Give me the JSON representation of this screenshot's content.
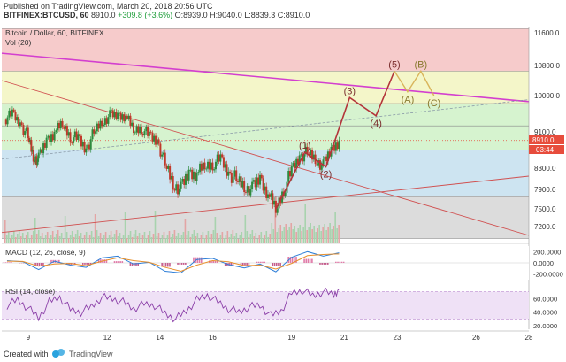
{
  "header": {
    "published_line": "Published on TradingView.com, March 20, 2018 20:56 UTC",
    "symbol": "BITFINEX:BTCUSD, 60",
    "last": "8910.0",
    "change": "+309.8 (+3.6%)",
    "ohlc": "O:8939.0 H:9040.0 L:8839.3 C:8910.0"
  },
  "legend": {
    "title": "Bitcoin / Dollar, 60, BITFINEX",
    "volume": "Vol (20)",
    "macd": "MACD (12, 26, close, 9)",
    "rsi": "RSI (14, close)"
  },
  "price_badge": {
    "value": "8910.0",
    "time": "03:44",
    "color": "#e74c3c"
  },
  "footer": {
    "created": "Created with",
    "brand": "TradingView"
  },
  "colors": {
    "fib_red": "#f6cbcb",
    "fib_yellow": "#f4f6c9",
    "fib_green": "#d6f3cf",
    "fib_blue": "#cde4f1",
    "fib_grey": "#dcdcdc",
    "up": "#2e8b3e",
    "down": "#c0392b",
    "magenta_line": "#d33fcf",
    "wave_path": "#b3343a",
    "wave_future": "#d9b45a"
  },
  "chart_data": [
    {
      "type": "candlestick",
      "title": "Bitcoin / Dollar, 60, BITFINEX",
      "price_ticks": [
        "11600.0",
        "10800.0",
        "10000.0",
        "9100.0",
        "8300.0",
        "7900.0",
        "7500.0",
        "7200.0"
      ],
      "price_range": [
        7000,
        11900
      ],
      "x_ticks": [
        "9",
        "12",
        "14",
        "16",
        "19",
        "21",
        "23",
        "26",
        "28"
      ],
      "x_range": [
        8,
        28
      ],
      "fib_levels": [
        11700,
        10650,
        9800,
        9250,
        8700,
        7750,
        7450,
        7000
      ],
      "close_path": [
        [
          8.1,
          9400
        ],
        [
          8.4,
          9550
        ],
        [
          8.7,
          9300
        ],
        [
          9.0,
          9000
        ],
        [
          9.2,
          8550
        ],
        [
          9.4,
          8500
        ],
        [
          9.7,
          8900
        ],
        [
          10.0,
          9100
        ],
        [
          10.3,
          9300
        ],
        [
          10.6,
          9000
        ],
        [
          10.9,
          8950
        ],
        [
          11.2,
          8700
        ],
        [
          11.5,
          9100
        ],
        [
          11.8,
          9350
        ],
        [
          12.1,
          9500
        ],
        [
          12.4,
          9500
        ],
        [
          12.7,
          9500
        ],
        [
          13.0,
          9150
        ],
        [
          13.3,
          9200
        ],
        [
          13.6,
          9000
        ],
        [
          13.9,
          8900
        ],
        [
          14.2,
          8400
        ],
        [
          14.5,
          8000
        ],
        [
          14.8,
          7900
        ],
        [
          15.1,
          8200
        ],
        [
          15.4,
          8200
        ],
        [
          15.7,
          8350
        ],
        [
          16.0,
          8400
        ],
        [
          16.3,
          8500
        ],
        [
          16.6,
          8200
        ],
        [
          16.9,
          8100
        ],
        [
          17.2,
          7950
        ],
        [
          17.5,
          7900
        ],
        [
          17.8,
          8100
        ],
        [
          18.1,
          7800
        ],
        [
          18.4,
          7500
        ],
        [
          18.7,
          7900
        ],
        [
          19.0,
          8250
        ],
        [
          19.3,
          8550
        ],
        [
          19.6,
          8650
        ],
        [
          19.9,
          8500
        ],
        [
          20.2,
          8350
        ],
        [
          20.5,
          8700
        ],
        [
          20.8,
          8910
        ]
      ],
      "waves": [
        {
          "label": "(1)",
          "x": 19.5,
          "y": 8650
        },
        {
          "label": "(2)",
          "x": 20.3,
          "y": 8330
        },
        {
          "label": "(3)",
          "x": 21.2,
          "y": 9950
        },
        {
          "label": "(4)",
          "x": 22.2,
          "y": 9500
        },
        {
          "label": "(5)",
          "x": 22.9,
          "y": 10650
        },
        {
          "label": "(A)",
          "x": 23.4,
          "y": 10100
        },
        {
          "label": "(B)",
          "x": 23.9,
          "y": 10650
        },
        {
          "label": "(C)",
          "x": 24.4,
          "y": 10000
        }
      ],
      "wave_path": [
        [
          18.4,
          7500
        ],
        [
          19.5,
          8650
        ],
        [
          20.3,
          8330
        ],
        [
          21.2,
          9950
        ],
        [
          22.2,
          9500
        ],
        [
          22.9,
          10650
        ]
      ],
      "wave_future": [
        [
          22.9,
          10650
        ],
        [
          23.4,
          10100
        ],
        [
          23.9,
          10650
        ],
        [
          24.4,
          10000
        ]
      ],
      "trendlines": [
        {
          "name": "upper",
          "from": [
            8.0,
            11100
          ],
          "to": [
            28.0,
            9850
          ],
          "style": "solid"
        },
        {
          "name": "dashed",
          "from": [
            8.0,
            8500
          ],
          "to": [
            28.0,
            9900
          ],
          "style": "dashed"
        },
        {
          "name": "falling",
          "from": [
            8.0,
            10400
          ],
          "to": [
            28.0,
            7050
          ],
          "style": "solid"
        },
        {
          "name": "rising",
          "from": [
            8.0,
            7100
          ],
          "to": [
            28.0,
            8150
          ],
          "style": "solid"
        }
      ]
    },
    {
      "type": "line",
      "title": "MACD (12, 26, close, 9)",
      "y_ticks": [
        "200.0000",
        "0.0000",
        "-200.0000"
      ],
      "y_range": [
        -300,
        300
      ],
      "x": [
        8.2,
        8.8,
        9.4,
        10.0,
        10.6,
        11.2,
        11.8,
        12.4,
        13.0,
        13.6,
        14.2,
        14.8,
        15.4,
        16.0,
        16.6,
        17.2,
        17.8,
        18.4,
        19.0,
        19.6,
        20.2,
        20.8
      ],
      "series": [
        {
          "name": "MACD",
          "values": [
            40,
            20,
            -120,
            30,
            -40,
            -80,
            90,
            120,
            -20,
            10,
            -150,
            -180,
            60,
            80,
            -30,
            -90,
            -20,
            -160,
            100,
            200,
            120,
            180
          ]
        },
        {
          "name": "Signal",
          "values": [
            30,
            25,
            -60,
            -20,
            -10,
            -50,
            30,
            90,
            40,
            10,
            -80,
            -150,
            -40,
            40,
            20,
            -50,
            -40,
            -110,
            -10,
            130,
            150,
            160
          ]
        }
      ]
    },
    {
      "type": "line",
      "title": "RSI (14, close)",
      "y_ticks": [
        "60.0000",
        "40.0000",
        "20.0000"
      ],
      "y_range": [
        15,
        85
      ],
      "x": [
        8.2,
        8.6,
        9.0,
        9.4,
        9.8,
        10.2,
        10.6,
        11.0,
        11.4,
        11.8,
        12.2,
        12.6,
        13.0,
        13.4,
        13.8,
        14.2,
        14.6,
        15.0,
        15.4,
        15.8,
        16.2,
        16.6,
        17.0,
        17.4,
        17.8,
        18.2,
        18.6,
        19.0,
        19.4,
        19.8,
        20.2,
        20.6,
        20.8
      ],
      "series": [
        {
          "name": "RSI",
          "values": [
            50,
            58,
            46,
            32,
            55,
            62,
            44,
            40,
            48,
            62,
            60,
            55,
            45,
            52,
            50,
            38,
            30,
            42,
            58,
            65,
            55,
            45,
            40,
            48,
            50,
            35,
            42,
            68,
            72,
            64,
            70,
            66,
            74
          ]
        }
      ]
    }
  ]
}
